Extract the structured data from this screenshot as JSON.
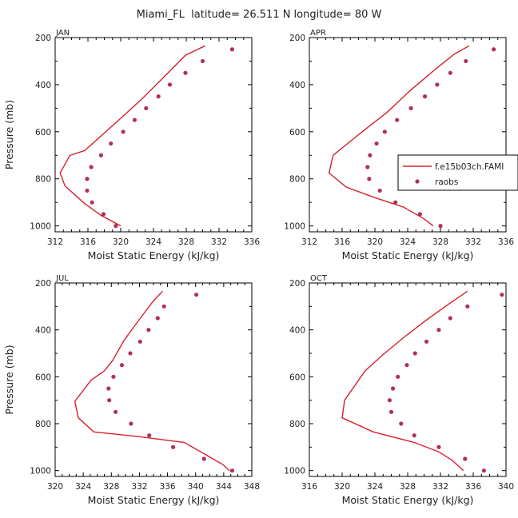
{
  "title": "Miami_FL  latitude= 26.511 N longitude= 80 W",
  "colors": {
    "model_line": "#d6202c",
    "obs_point": "#b0305a",
    "axes": "#000000"
  },
  "legend": {
    "model_label": "f.e15b03ch.FAMI",
    "obs_label": "raobs"
  },
  "chart_data": [
    {
      "type": "line",
      "panel": "JAN",
      "xlabel": "Moist Static Energy (kJ/kg)",
      "ylabel": "Pressure (mb)",
      "xlim": [
        312,
        336
      ],
      "ylim": [
        200,
        1025
      ],
      "xticks": [
        312,
        316,
        320,
        324,
        328,
        332,
        336
      ],
      "yticks": [
        200,
        400,
        600,
        800,
        1000
      ],
      "grid": false,
      "series": [
        {
          "name": "f.e15b03ch.FAMI",
          "style": "line",
          "points": [
            [
              330.3,
              235
            ],
            [
              327.9,
              275
            ],
            [
              325.2,
              370
            ],
            [
              322.6,
              460
            ],
            [
              320.1,
              540
            ],
            [
              317.7,
              615
            ],
            [
              315.6,
              680
            ],
            [
              313.8,
              700
            ],
            [
              312.6,
              775
            ],
            [
              313.2,
              830
            ],
            [
              315.6,
              905
            ],
            [
              317.6,
              955
            ],
            [
              320.0,
              1000
            ]
          ]
        },
        {
          "name": "raobs",
          "style": "points",
          "points": [
            [
              333.6,
              250
            ],
            [
              330.0,
              300
            ],
            [
              327.9,
              350
            ],
            [
              326.0,
              400
            ],
            [
              324.6,
              450
            ],
            [
              323.1,
              500
            ],
            [
              321.7,
              550
            ],
            [
              320.3,
              600
            ],
            [
              318.8,
              650
            ],
            [
              317.6,
              700
            ],
            [
              316.4,
              750
            ],
            [
              315.9,
              800
            ],
            [
              315.9,
              850
            ],
            [
              316.5,
              900
            ],
            [
              317.9,
              950
            ],
            [
              319.4,
              1000
            ]
          ]
        }
      ]
    },
    {
      "type": "line",
      "panel": "APR",
      "xlabel": "Moist Static Energy (kJ/kg)",
      "ylabel": "Pressure (mb)",
      "xlim": [
        312,
        336
      ],
      "ylim": [
        200,
        1025
      ],
      "xticks": [
        312,
        316,
        320,
        324,
        328,
        332,
        336
      ],
      "yticks": [
        200,
        400,
        600,
        800,
        1000
      ],
      "grid": false,
      "series": [
        {
          "name": "f.e15b03ch.FAMI",
          "style": "line",
          "points": [
            [
              331.5,
              235
            ],
            [
              329.7,
              270
            ],
            [
              327.2,
              340
            ],
            [
              324.3,
              425
            ],
            [
              321.4,
              520
            ],
            [
              318.8,
              590
            ],
            [
              316.5,
              655
            ],
            [
              314.9,
              700
            ],
            [
              314.4,
              775
            ],
            [
              316.5,
              835
            ],
            [
              320.0,
              880
            ],
            [
              323.5,
              920
            ],
            [
              326.0,
              970
            ],
            [
              327.1,
              1000
            ]
          ]
        },
        {
          "name": "raobs",
          "style": "points",
          "points": [
            [
              334.5,
              250
            ],
            [
              331.1,
              300
            ],
            [
              329.2,
              350
            ],
            [
              327.6,
              400
            ],
            [
              326.1,
              450
            ],
            [
              324.4,
              500
            ],
            [
              322.7,
              550
            ],
            [
              321.2,
              600
            ],
            [
              320.2,
              650
            ],
            [
              319.4,
              700
            ],
            [
              319.1,
              750
            ],
            [
              319.3,
              800
            ],
            [
              320.6,
              850
            ],
            [
              322.5,
              900
            ],
            [
              325.5,
              950
            ],
            [
              328.0,
              1000
            ]
          ]
        }
      ]
    },
    {
      "type": "line",
      "panel": "JUL",
      "xlabel": "Moist Static Energy (kJ/kg)",
      "ylabel": "Pressure (mb)",
      "xlim": [
        320,
        348
      ],
      "ylim": [
        200,
        1025
      ],
      "xticks": [
        320,
        324,
        328,
        332,
        336,
        340,
        344,
        348
      ],
      "yticks": [
        200,
        400,
        600,
        800,
        1000
      ],
      "grid": false,
      "series": [
        {
          "name": "f.e15b03ch.FAMI",
          "style": "line",
          "points": [
            [
              335.3,
              235
            ],
            [
              333.9,
              280
            ],
            [
              332.0,
              355
            ],
            [
              329.8,
              445
            ],
            [
              328.2,
              530
            ],
            [
              327.0,
              575
            ],
            [
              325.1,
              615
            ],
            [
              322.8,
              705
            ],
            [
              323.3,
              775
            ],
            [
              325.5,
              835
            ],
            [
              331.8,
              855
            ],
            [
              338.4,
              880
            ],
            [
              341.3,
              930
            ],
            [
              343.9,
              975
            ],
            [
              344.8,
              1000
            ]
          ]
        },
        {
          "name": "raobs",
          "style": "points",
          "points": [
            [
              340.1,
              250
            ],
            [
              335.5,
              300
            ],
            [
              334.6,
              350
            ],
            [
              333.3,
              400
            ],
            [
              332.1,
              450
            ],
            [
              330.7,
              500
            ],
            [
              329.5,
              550
            ],
            [
              328.3,
              600
            ],
            [
              327.6,
              650
            ],
            [
              327.7,
              700
            ],
            [
              328.6,
              750
            ],
            [
              330.8,
              800
            ],
            [
              333.4,
              850
            ],
            [
              336.8,
              900
            ],
            [
              341.2,
              950
            ],
            [
              345.2,
              1000
            ]
          ]
        }
      ]
    },
    {
      "type": "line",
      "panel": "OCT",
      "xlabel": "Moist Static Energy (kJ/kg)",
      "ylabel": "Pressure (mb)",
      "xlim": [
        316,
        340
      ],
      "ylim": [
        200,
        1025
      ],
      "xticks": [
        316,
        320,
        324,
        328,
        332,
        336,
        340
      ],
      "yticks": [
        200,
        400,
        600,
        800,
        1000
      ],
      "grid": false,
      "series": [
        {
          "name": "f.e15b03ch.FAMI",
          "style": "line",
          "points": [
            [
              335.3,
              235
            ],
            [
              333.0,
              290
            ],
            [
              330.4,
              355
            ],
            [
              327.6,
              430
            ],
            [
              325.0,
              505
            ],
            [
              322.8,
              575
            ],
            [
              320.3,
              700
            ],
            [
              320.0,
              775
            ],
            [
              323.8,
              835
            ],
            [
              328.8,
              880
            ],
            [
              331.8,
              920
            ],
            [
              333.4,
              955
            ],
            [
              334.8,
              1000
            ]
          ]
        },
        {
          "name": "raobs",
          "style": "points",
          "points": [
            [
              339.5,
              250
            ],
            [
              335.3,
              300
            ],
            [
              333.2,
              350
            ],
            [
              331.8,
              400
            ],
            [
              330.3,
              450
            ],
            [
              328.9,
              500
            ],
            [
              327.9,
              550
            ],
            [
              326.8,
              600
            ],
            [
              326.2,
              650
            ],
            [
              325.8,
              700
            ],
            [
              326.0,
              750
            ],
            [
              327.2,
              800
            ],
            [
              328.8,
              850
            ],
            [
              331.8,
              900
            ],
            [
              335.0,
              950
            ],
            [
              337.3,
              1000
            ]
          ]
        }
      ]
    }
  ]
}
